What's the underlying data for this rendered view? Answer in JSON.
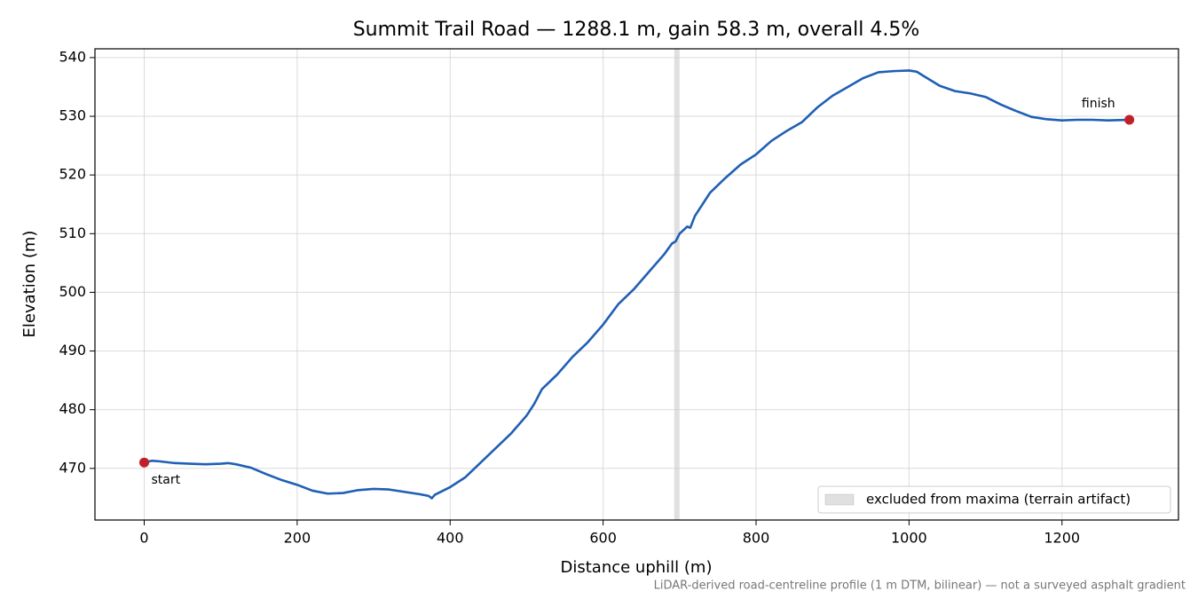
{
  "chart_data": {
    "type": "line",
    "title": "Summit Trail Road — 1288.1 m, gain 58.3 m, overall 4.5%",
    "xlabel": "Distance uphill (m)",
    "ylabel": "Elevation (m)",
    "footnote": "LiDAR-derived road-centreline profile (1 m DTM, bilinear) — not a surveyed asphalt gradient",
    "x": [
      0,
      10,
      20,
      40,
      60,
      80,
      100,
      110,
      120,
      140,
      160,
      180,
      200,
      220,
      240,
      260,
      280,
      300,
      320,
      340,
      360,
      372,
      376,
      380,
      400,
      420,
      440,
      460,
      480,
      500,
      510,
      520,
      540,
      560,
      580,
      600,
      620,
      640,
      660,
      680,
      690,
      695,
      700,
      710,
      714,
      720,
      740,
      760,
      780,
      800,
      820,
      840,
      860,
      880,
      900,
      920,
      940,
      960,
      980,
      1000,
      1010,
      1020,
      1040,
      1060,
      1080,
      1100,
      1120,
      1140,
      1160,
      1180,
      1200,
      1220,
      1240,
      1260,
      1288.1
    ],
    "values": [
      471.0,
      471.3,
      471.2,
      470.9,
      470.8,
      470.7,
      470.8,
      470.9,
      470.7,
      470.1,
      469.0,
      468.0,
      467.2,
      466.2,
      465.7,
      465.8,
      466.3,
      466.5,
      466.4,
      466.0,
      465.6,
      465.3,
      464.9,
      465.5,
      466.8,
      468.5,
      471.0,
      473.5,
      476.0,
      479.0,
      481.0,
      483.5,
      486.0,
      489.0,
      491.5,
      494.5,
      498.0,
      500.5,
      503.5,
      506.5,
      508.3,
      508.7,
      510.0,
      511.2,
      511.0,
      513.0,
      517.0,
      519.5,
      521.8,
      523.5,
      525.8,
      527.5,
      529.0,
      531.5,
      533.5,
      535.0,
      536.5,
      537.5,
      537.7,
      537.8,
      537.6,
      536.8,
      535.2,
      534.3,
      533.9,
      533.3,
      532.0,
      530.9,
      529.9,
      529.5,
      529.3,
      529.4,
      529.4,
      529.3,
      529.4
    ],
    "color": "#1f5fb4",
    "markers": [
      {
        "label": "start",
        "x": 0,
        "y": 471.0
      },
      {
        "label": "finish",
        "x": 1288.1,
        "y": 529.4
      }
    ],
    "marker_color": "#c0202a",
    "shaded_span": {
      "x": [
        693,
        700
      ],
      "label": "excluded from maxima (terrain artifact)",
      "color": "#999999"
    },
    "legend_position": "lower right",
    "xlim": [
      -64.4,
      1352.3
    ],
    "ylim": [
      461.2,
      541.5
    ],
    "xticks": [
      0,
      200,
      400,
      600,
      800,
      1000,
      1200
    ],
    "yticks": [
      470,
      480,
      490,
      500,
      510,
      520,
      530,
      540
    ],
    "grid": true
  }
}
